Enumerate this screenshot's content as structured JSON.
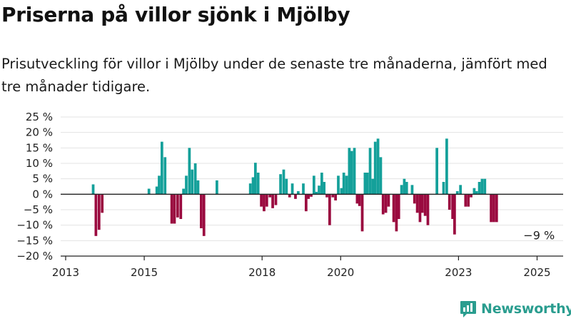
{
  "title": "Priserna på villor sjönk i Mjölby",
  "subtitle": "Prisutveckling för villor i Mjölby under de senaste tre månaderna, jämfört med tre månader tidigare.",
  "brand": {
    "name": "Newsworthy",
    "color": "#2a9d8f",
    "icon": "bar-chart-logo-icon"
  },
  "colors": {
    "positive": "#14a09a",
    "negative": "#9a0a3f",
    "grid": "#e3e3e3",
    "axis": "#222222"
  },
  "chart_data": {
    "type": "bar",
    "title": "Priserna på villor sjönk i Mjölby",
    "xlabel": "",
    "ylabel": "",
    "ylim": [
      -20,
      25
    ],
    "xlim": [
      2013.0,
      2025.5
    ],
    "y_ticks": [
      "25 %",
      "20 %",
      "15 %",
      "10 %",
      "5 %",
      "0 %",
      "−5 %",
      "−10 %",
      "−15 %",
      "−20 %"
    ],
    "y_tick_values": [
      25,
      20,
      15,
      10,
      5,
      0,
      -5,
      -10,
      -15,
      -20
    ],
    "x_ticks": [
      "2013",
      "2015",
      "2018",
      "2020",
      "2023",
      "2025"
    ],
    "x_tick_values": [
      2013,
      2015,
      2018,
      2020,
      2023,
      2025
    ],
    "annotation": {
      "text": "−9 %",
      "x": 2025.05,
      "y": -9
    },
    "grid": true,
    "bar_width_years": 0.068,
    "bars": [
      {
        "x": 2013.7,
        "y": 3.2
      },
      {
        "x": 2013.77,
        "y": -13.5
      },
      {
        "x": 2013.85,
        "y": -11.5
      },
      {
        "x": 2013.93,
        "y": -6
      },
      {
        "x": 2015.12,
        "y": 1.8
      },
      {
        "x": 2015.32,
        "y": 2.5
      },
      {
        "x": 2015.38,
        "y": 6
      },
      {
        "x": 2015.45,
        "y": 17
      },
      {
        "x": 2015.53,
        "y": 12
      },
      {
        "x": 2015.7,
        "y": -9.5
      },
      {
        "x": 2015.77,
        "y": -9.5
      },
      {
        "x": 2015.85,
        "y": -7.5
      },
      {
        "x": 2015.93,
        "y": -8
      },
      {
        "x": 2016.0,
        "y": 1.8
      },
      {
        "x": 2016.07,
        "y": 6
      },
      {
        "x": 2016.15,
        "y": 15
      },
      {
        "x": 2016.22,
        "y": 8
      },
      {
        "x": 2016.3,
        "y": 10
      },
      {
        "x": 2016.37,
        "y": 4.5
      },
      {
        "x": 2016.45,
        "y": -11
      },
      {
        "x": 2016.52,
        "y": -13.5
      },
      {
        "x": 2016.85,
        "y": 4.5
      },
      {
        "x": 2017.7,
        "y": 3.5
      },
      {
        "x": 2017.77,
        "y": 5.5
      },
      {
        "x": 2017.83,
        "y": 10.2
      },
      {
        "x": 2017.9,
        "y": 7
      },
      {
        "x": 2017.98,
        "y": -4
      },
      {
        "x": 2018.05,
        "y": -5.5
      },
      {
        "x": 2018.12,
        "y": -4
      },
      {
        "x": 2018.2,
        "y": -1
      },
      {
        "x": 2018.27,
        "y": -4.5
      },
      {
        "x": 2018.35,
        "y": -3.5
      },
      {
        "x": 2018.47,
        "y": 6.5
      },
      {
        "x": 2018.55,
        "y": 8
      },
      {
        "x": 2018.62,
        "y": 5
      },
      {
        "x": 2018.7,
        "y": -1
      },
      {
        "x": 2018.77,
        "y": 3.5
      },
      {
        "x": 2018.85,
        "y": -1.5
      },
      {
        "x": 2018.92,
        "y": 1
      },
      {
        "x": 2019.05,
        "y": 3.5
      },
      {
        "x": 2019.12,
        "y": -5.5
      },
      {
        "x": 2019.18,
        "y": -1.5
      },
      {
        "x": 2019.25,
        "y": -0.8
      },
      {
        "x": 2019.32,
        "y": 6
      },
      {
        "x": 2019.38,
        "y": 0.8
      },
      {
        "x": 2019.45,
        "y": 2.8
      },
      {
        "x": 2019.52,
        "y": 7
      },
      {
        "x": 2019.58,
        "y": 4
      },
      {
        "x": 2019.65,
        "y": -1
      },
      {
        "x": 2019.72,
        "y": -10
      },
      {
        "x": 2019.8,
        "y": -1
      },
      {
        "x": 2019.87,
        "y": -2
      },
      {
        "x": 2019.94,
        "y": 6
      },
      {
        "x": 2020.02,
        "y": 2
      },
      {
        "x": 2020.08,
        "y": 7
      },
      {
        "x": 2020.15,
        "y": 6
      },
      {
        "x": 2020.22,
        "y": 15
      },
      {
        "x": 2020.28,
        "y": 14
      },
      {
        "x": 2020.35,
        "y": 15
      },
      {
        "x": 2020.42,
        "y": -3
      },
      {
        "x": 2020.48,
        "y": -3.8
      },
      {
        "x": 2020.55,
        "y": -12
      },
      {
        "x": 2020.62,
        "y": 7
      },
      {
        "x": 2020.68,
        "y": 7
      },
      {
        "x": 2020.75,
        "y": 15
      },
      {
        "x": 2020.82,
        "y": 5
      },
      {
        "x": 2020.88,
        "y": 17
      },
      {
        "x": 2020.95,
        "y": 18
      },
      {
        "x": 2021.02,
        "y": 12
      },
      {
        "x": 2021.08,
        "y": -6.5
      },
      {
        "x": 2021.15,
        "y": -6
      },
      {
        "x": 2021.22,
        "y": -4
      },
      {
        "x": 2021.35,
        "y": -9
      },
      {
        "x": 2021.42,
        "y": -12
      },
      {
        "x": 2021.48,
        "y": -8
      },
      {
        "x": 2021.55,
        "y": 3
      },
      {
        "x": 2021.62,
        "y": 5
      },
      {
        "x": 2021.68,
        "y": 4
      },
      {
        "x": 2021.82,
        "y": 3
      },
      {
        "x": 2021.88,
        "y": -3
      },
      {
        "x": 2021.95,
        "y": -6
      },
      {
        "x": 2022.02,
        "y": -9
      },
      {
        "x": 2022.08,
        "y": -6
      },
      {
        "x": 2022.15,
        "y": -7
      },
      {
        "x": 2022.22,
        "y": -10
      },
      {
        "x": 2022.45,
        "y": 15
      },
      {
        "x": 2022.62,
        "y": 4
      },
      {
        "x": 2022.7,
        "y": 18
      },
      {
        "x": 2022.77,
        "y": -5
      },
      {
        "x": 2022.85,
        "y": -8
      },
      {
        "x": 2022.9,
        "y": -13
      },
      {
        "x": 2022.97,
        "y": 1
      },
      {
        "x": 2023.05,
        "y": 3
      },
      {
        "x": 2023.18,
        "y": -4
      },
      {
        "x": 2023.25,
        "y": -4
      },
      {
        "x": 2023.32,
        "y": -1
      },
      {
        "x": 2023.4,
        "y": 2
      },
      {
        "x": 2023.46,
        "y": 1
      },
      {
        "x": 2023.53,
        "y": 4
      },
      {
        "x": 2023.6,
        "y": 5
      },
      {
        "x": 2023.67,
        "y": 5
      },
      {
        "x": 2023.83,
        "y": -9
      },
      {
        "x": 2023.9,
        "y": -9
      },
      {
        "x": 2023.97,
        "y": -9
      }
    ]
  }
}
